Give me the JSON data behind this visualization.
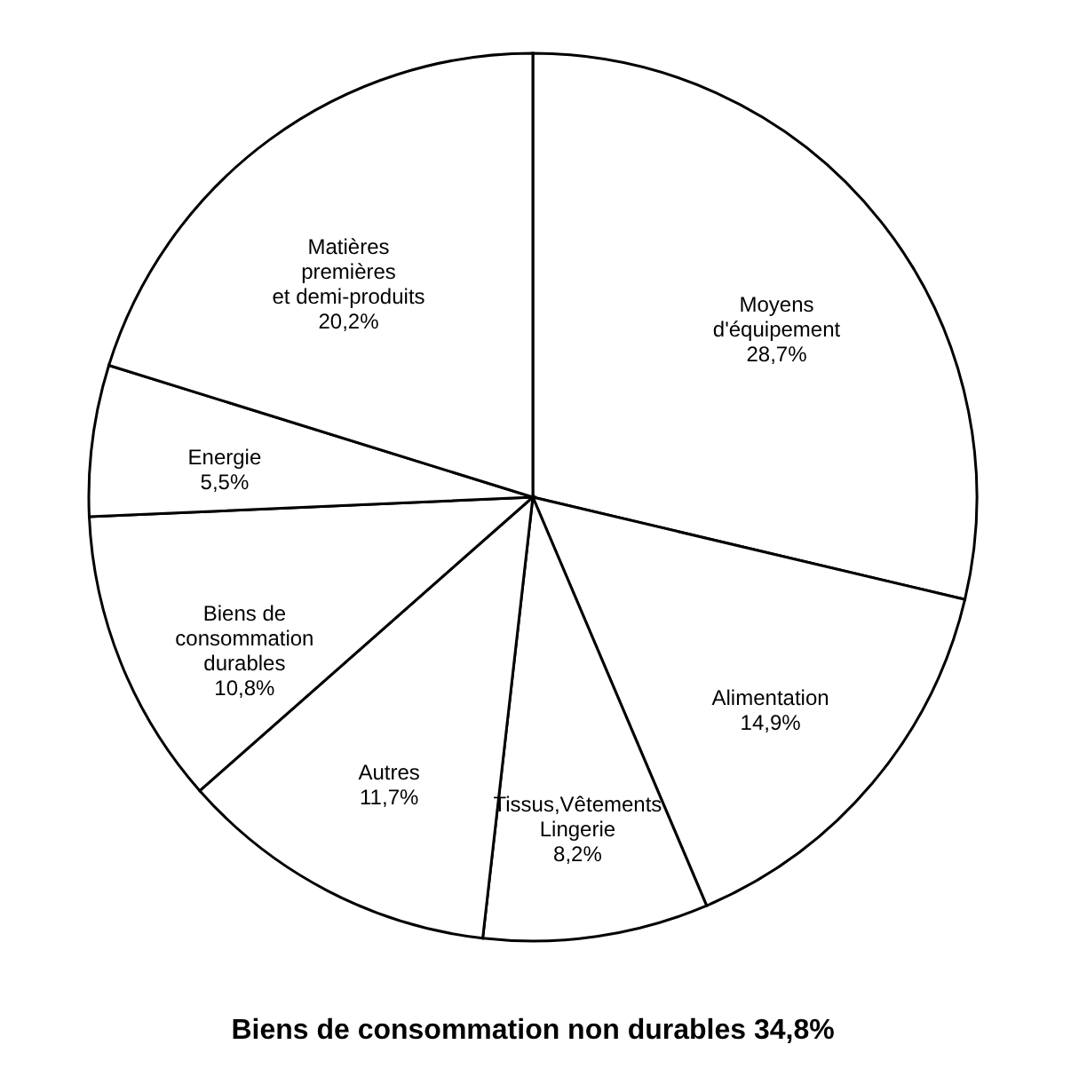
{
  "chart_data": {
    "type": "pie",
    "categories": [
      "Moyens\nd'équipement",
      "Alimentation",
      "Tissus,Vêtements\nLingerie",
      "Autres",
      "Biens de\nconsommation\ndurables",
      "Energie",
      "Matières\npremières\net demi-produits"
    ],
    "values": [
      28.7,
      14.9,
      8.2,
      11.7,
      10.8,
      5.5,
      20.2
    ],
    "value_labels": [
      "28,7%",
      "14,9%",
      "8,2%",
      "11,7%",
      "10,8%",
      "5,5%",
      "20,2%"
    ],
    "colors": [
      "#ffffff",
      "#ffffff",
      "#ffffff",
      "#ffffff",
      "#ffffff",
      "#ffffff",
      "#ffffff"
    ],
    "annotations": [
      "Biens de consommation non durables 34,8%"
    ]
  }
}
